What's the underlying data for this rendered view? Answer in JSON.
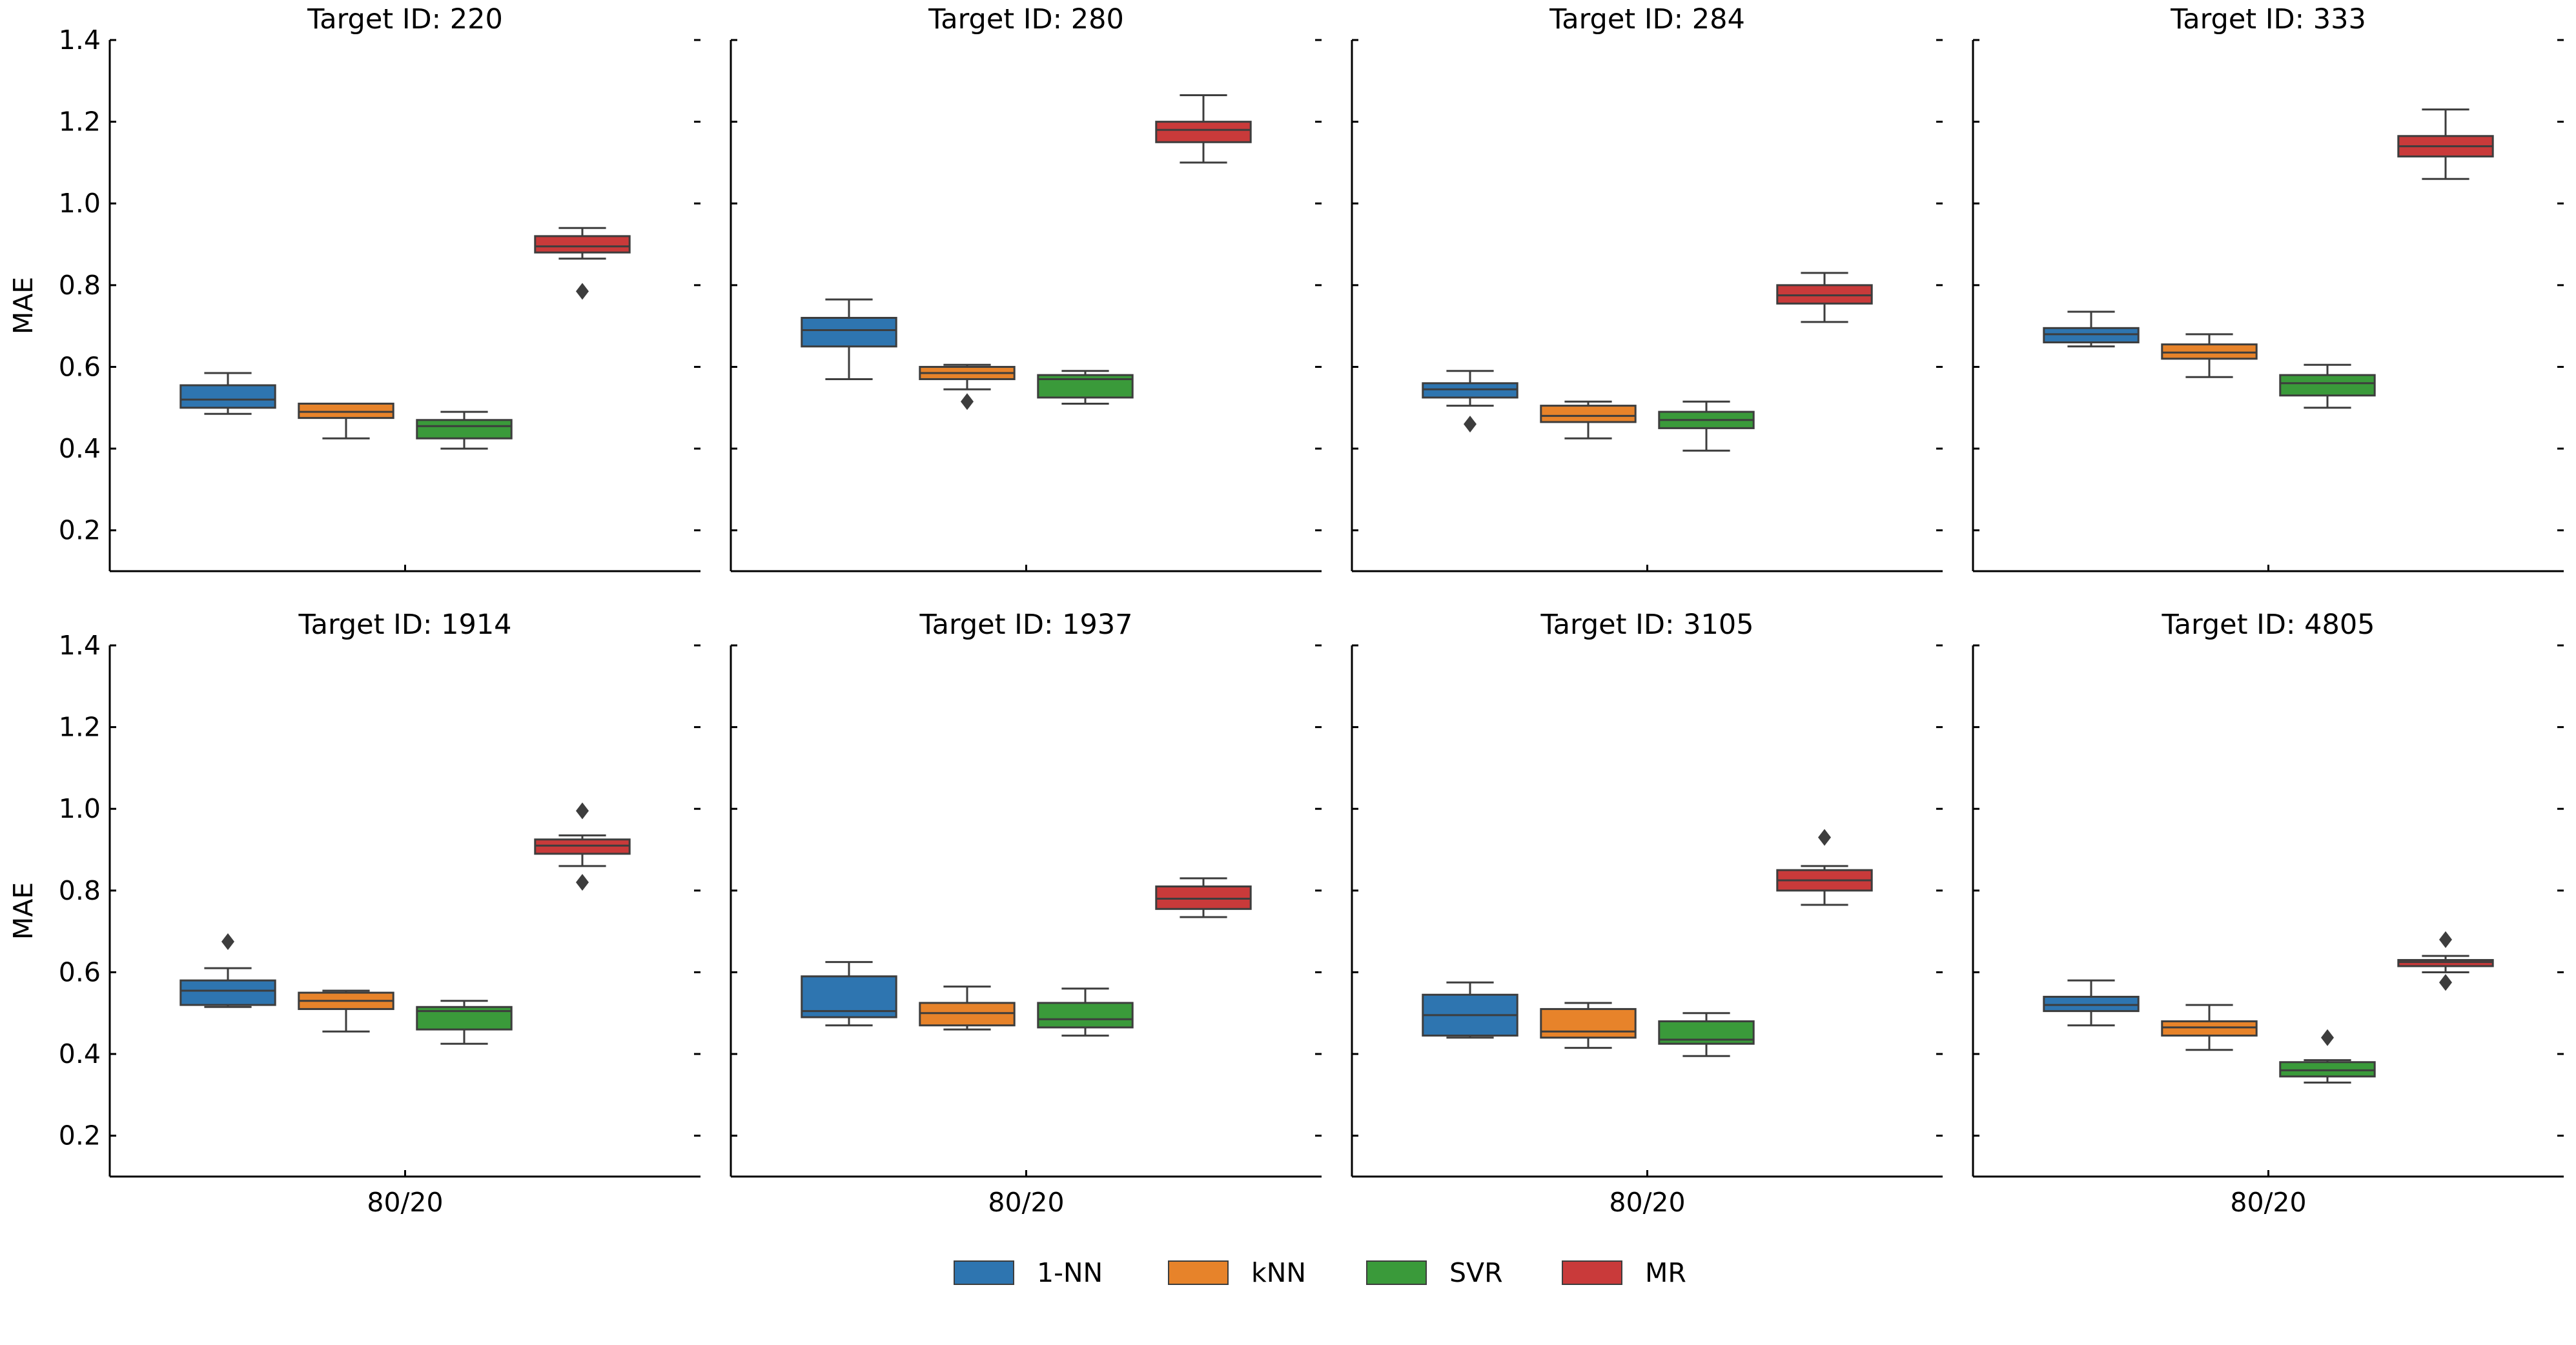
{
  "chart_data": {
    "type": "box",
    "ylabel": "MAE",
    "ylim": [
      0.1,
      1.4
    ],
    "yticks": [
      0.2,
      0.4,
      0.6,
      0.8,
      1.0,
      1.2,
      1.4
    ],
    "ytick_labels": [
      "0.2",
      "0.4",
      "0.6",
      "0.8",
      "1.0",
      "1.2",
      "1.4"
    ],
    "xcategory": "80/20",
    "legend": [
      {
        "name": "1-NN",
        "color": "#2e75b0"
      },
      {
        "name": "kNN",
        "color": "#e7832a"
      },
      {
        "name": "SVR",
        "color": "#3a9a3a"
      },
      {
        "name": "MR",
        "color": "#c93a3a"
      }
    ],
    "panels": [
      {
        "title": "Target ID: 220",
        "boxes": [
          {
            "series": "1-NN",
            "min": 0.485,
            "q1": 0.5,
            "median": 0.52,
            "q3": 0.555,
            "max": 0.585,
            "outliers": []
          },
          {
            "series": "kNN",
            "min": 0.425,
            "q1": 0.475,
            "median": 0.49,
            "q3": 0.51,
            "max": 0.51,
            "outliers": []
          },
          {
            "series": "SVR",
            "min": 0.4,
            "q1": 0.425,
            "median": 0.455,
            "q3": 0.47,
            "max": 0.49,
            "outliers": []
          },
          {
            "series": "MR",
            "min": 0.865,
            "q1": 0.88,
            "median": 0.895,
            "q3": 0.92,
            "max": 0.94,
            "outliers": [
              0.785
            ]
          }
        ]
      },
      {
        "title": "Target ID: 280",
        "boxes": [
          {
            "series": "1-NN",
            "min": 0.57,
            "q1": 0.65,
            "median": 0.69,
            "q3": 0.72,
            "max": 0.765,
            "outliers": []
          },
          {
            "series": "kNN",
            "min": 0.545,
            "q1": 0.57,
            "median": 0.585,
            "q3": 0.6,
            "max": 0.605,
            "outliers": [
              0.515
            ]
          },
          {
            "series": "SVR",
            "min": 0.51,
            "q1": 0.525,
            "median": 0.57,
            "q3": 0.58,
            "max": 0.59,
            "outliers": []
          },
          {
            "series": "MR",
            "min": 1.1,
            "q1": 1.15,
            "median": 1.18,
            "q3": 1.2,
            "max": 1.265,
            "outliers": []
          }
        ]
      },
      {
        "title": "Target ID: 284",
        "boxes": [
          {
            "series": "1-NN",
            "min": 0.505,
            "q1": 0.525,
            "median": 0.545,
            "q3": 0.56,
            "max": 0.59,
            "outliers": [
              0.46
            ]
          },
          {
            "series": "kNN",
            "min": 0.425,
            "q1": 0.465,
            "median": 0.48,
            "q3": 0.505,
            "max": 0.515,
            "outliers": []
          },
          {
            "series": "SVR",
            "min": 0.395,
            "q1": 0.45,
            "median": 0.47,
            "q3": 0.49,
            "max": 0.515,
            "outliers": []
          },
          {
            "series": "MR",
            "min": 0.71,
            "q1": 0.755,
            "median": 0.775,
            "q3": 0.8,
            "max": 0.83,
            "outliers": []
          }
        ]
      },
      {
        "title": "Target ID: 333",
        "boxes": [
          {
            "series": "1-NN",
            "min": 0.65,
            "q1": 0.66,
            "median": 0.68,
            "q3": 0.695,
            "max": 0.735,
            "outliers": []
          },
          {
            "series": "kNN",
            "min": 0.575,
            "q1": 0.62,
            "median": 0.635,
            "q3": 0.655,
            "max": 0.68,
            "outliers": []
          },
          {
            "series": "SVR",
            "min": 0.5,
            "q1": 0.53,
            "median": 0.56,
            "q3": 0.58,
            "max": 0.605,
            "outliers": []
          },
          {
            "series": "MR",
            "min": 1.06,
            "q1": 1.115,
            "median": 1.14,
            "q3": 1.165,
            "max": 1.23,
            "outliers": []
          }
        ]
      },
      {
        "title": "Target ID: 1914",
        "boxes": [
          {
            "series": "1-NN",
            "min": 0.515,
            "q1": 0.52,
            "median": 0.555,
            "q3": 0.58,
            "max": 0.61,
            "outliers": [
              0.675
            ]
          },
          {
            "series": "kNN",
            "min": 0.455,
            "q1": 0.51,
            "median": 0.53,
            "q3": 0.55,
            "max": 0.555,
            "outliers": []
          },
          {
            "series": "SVR",
            "min": 0.425,
            "q1": 0.46,
            "median": 0.505,
            "q3": 0.515,
            "max": 0.53,
            "outliers": []
          },
          {
            "series": "MR",
            "min": 0.86,
            "q1": 0.89,
            "median": 0.91,
            "q3": 0.925,
            "max": 0.935,
            "outliers": [
              0.995,
              0.82
            ]
          }
        ]
      },
      {
        "title": "Target ID: 1937",
        "boxes": [
          {
            "series": "1-NN",
            "min": 0.47,
            "q1": 0.49,
            "median": 0.505,
            "q3": 0.59,
            "max": 0.625,
            "outliers": []
          },
          {
            "series": "kNN",
            "min": 0.46,
            "q1": 0.47,
            "median": 0.5,
            "q3": 0.525,
            "max": 0.565,
            "outliers": []
          },
          {
            "series": "SVR",
            "min": 0.445,
            "q1": 0.465,
            "median": 0.485,
            "q3": 0.525,
            "max": 0.56,
            "outliers": []
          },
          {
            "series": "MR",
            "min": 0.735,
            "q1": 0.755,
            "median": 0.78,
            "q3": 0.81,
            "max": 0.83,
            "outliers": []
          }
        ]
      },
      {
        "title": "Target ID: 3105",
        "boxes": [
          {
            "series": "1-NN",
            "min": 0.44,
            "q1": 0.445,
            "median": 0.495,
            "q3": 0.545,
            "max": 0.575,
            "outliers": []
          },
          {
            "series": "kNN",
            "min": 0.415,
            "q1": 0.44,
            "median": 0.455,
            "q3": 0.51,
            "max": 0.525,
            "outliers": []
          },
          {
            "series": "SVR",
            "min": 0.395,
            "q1": 0.425,
            "median": 0.435,
            "q3": 0.48,
            "max": 0.5,
            "outliers": []
          },
          {
            "series": "MR",
            "min": 0.765,
            "q1": 0.8,
            "median": 0.825,
            "q3": 0.85,
            "max": 0.86,
            "outliers": [
              0.93
            ]
          }
        ]
      },
      {
        "title": "Target ID: 4805",
        "boxes": [
          {
            "series": "1-NN",
            "min": 0.47,
            "q1": 0.505,
            "median": 0.52,
            "q3": 0.54,
            "max": 0.58,
            "outliers": []
          },
          {
            "series": "kNN",
            "min": 0.41,
            "q1": 0.445,
            "median": 0.465,
            "q3": 0.48,
            "max": 0.52,
            "outliers": []
          },
          {
            "series": "SVR",
            "min": 0.33,
            "q1": 0.345,
            "median": 0.36,
            "q3": 0.38,
            "max": 0.385,
            "outliers": [
              0.44
            ]
          },
          {
            "series": "MR",
            "min": 0.6,
            "q1": 0.615,
            "median": 0.625,
            "q3": 0.63,
            "max": 0.64,
            "outliers": [
              0.68,
              0.575
            ]
          }
        ]
      }
    ]
  }
}
